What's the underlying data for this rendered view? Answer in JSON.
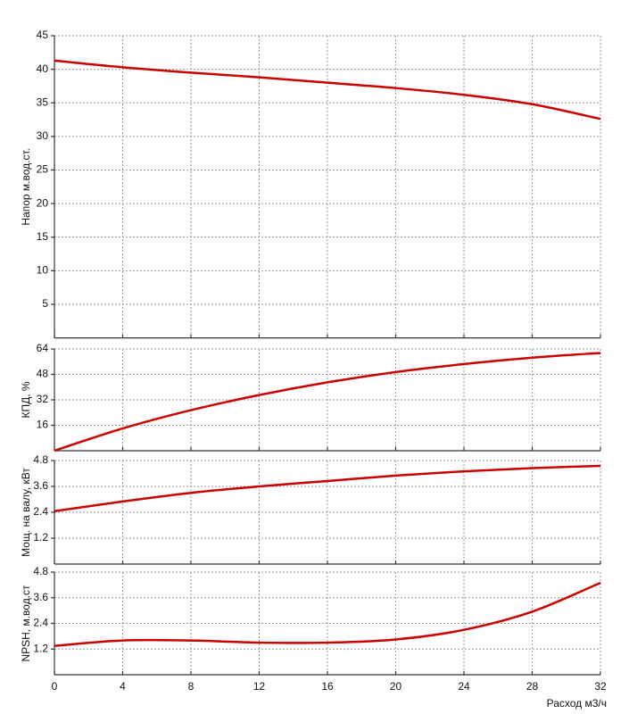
{
  "chart_data": [
    {
      "type": "line",
      "ylabel": "Напор м.вод.ст.",
      "ylim": [
        0,
        45
      ],
      "yticks": [
        5,
        10,
        15,
        20,
        25,
        30,
        35,
        40,
        45
      ],
      "grid": true,
      "x": [
        0,
        4,
        8,
        12,
        16,
        20,
        24,
        28,
        32
      ],
      "series": [
        {
          "color": "#cc0000",
          "values": [
            41.3,
            40.3,
            39.5,
            38.8,
            38.0,
            37.2,
            36.2,
            34.8,
            32.6
          ]
        }
      ]
    },
    {
      "type": "line",
      "ylabel": "КПД, %",
      "ylim": [
        0,
        64
      ],
      "yticks": [
        16,
        32,
        48,
        64
      ],
      "grid": true,
      "x": [
        0,
        4,
        8,
        12,
        16,
        20,
        24,
        28,
        32
      ],
      "series": [
        {
          "color": "#cc0000",
          "values": [
            0,
            14,
            25.5,
            35,
            43,
            49.5,
            54.5,
            58.5,
            61.5
          ]
        }
      ]
    },
    {
      "type": "line",
      "ylabel": "Мощ. на валу, кВт",
      "ylim": [
        0,
        4.8
      ],
      "yticks": [
        1.2,
        2.4,
        3.6,
        4.8
      ],
      "grid": true,
      "x": [
        0,
        4,
        8,
        12,
        16,
        20,
        24,
        28,
        32
      ],
      "series": [
        {
          "color": "#cc0000",
          "values": [
            2.45,
            2.9,
            3.3,
            3.6,
            3.85,
            4.1,
            4.3,
            4.45,
            4.55
          ]
        }
      ]
    },
    {
      "type": "line",
      "ylabel": "NPSH, м.вод.ст",
      "ylim": [
        0,
        4.8
      ],
      "yticks": [
        1.2,
        2.4,
        3.6,
        4.8
      ],
      "grid": true,
      "xlabel": "Расход м3/ч",
      "xlim": [
        0,
        32
      ],
      "xticks": [
        0,
        4,
        8,
        12,
        16,
        20,
        24,
        28,
        32
      ],
      "x": [
        0,
        4,
        8,
        12,
        16,
        20,
        24,
        28,
        32
      ],
      "series": [
        {
          "color": "#cc0000",
          "values": [
            1.35,
            1.6,
            1.6,
            1.5,
            1.5,
            1.65,
            2.1,
            2.95,
            4.3
          ]
        }
      ]
    }
  ]
}
